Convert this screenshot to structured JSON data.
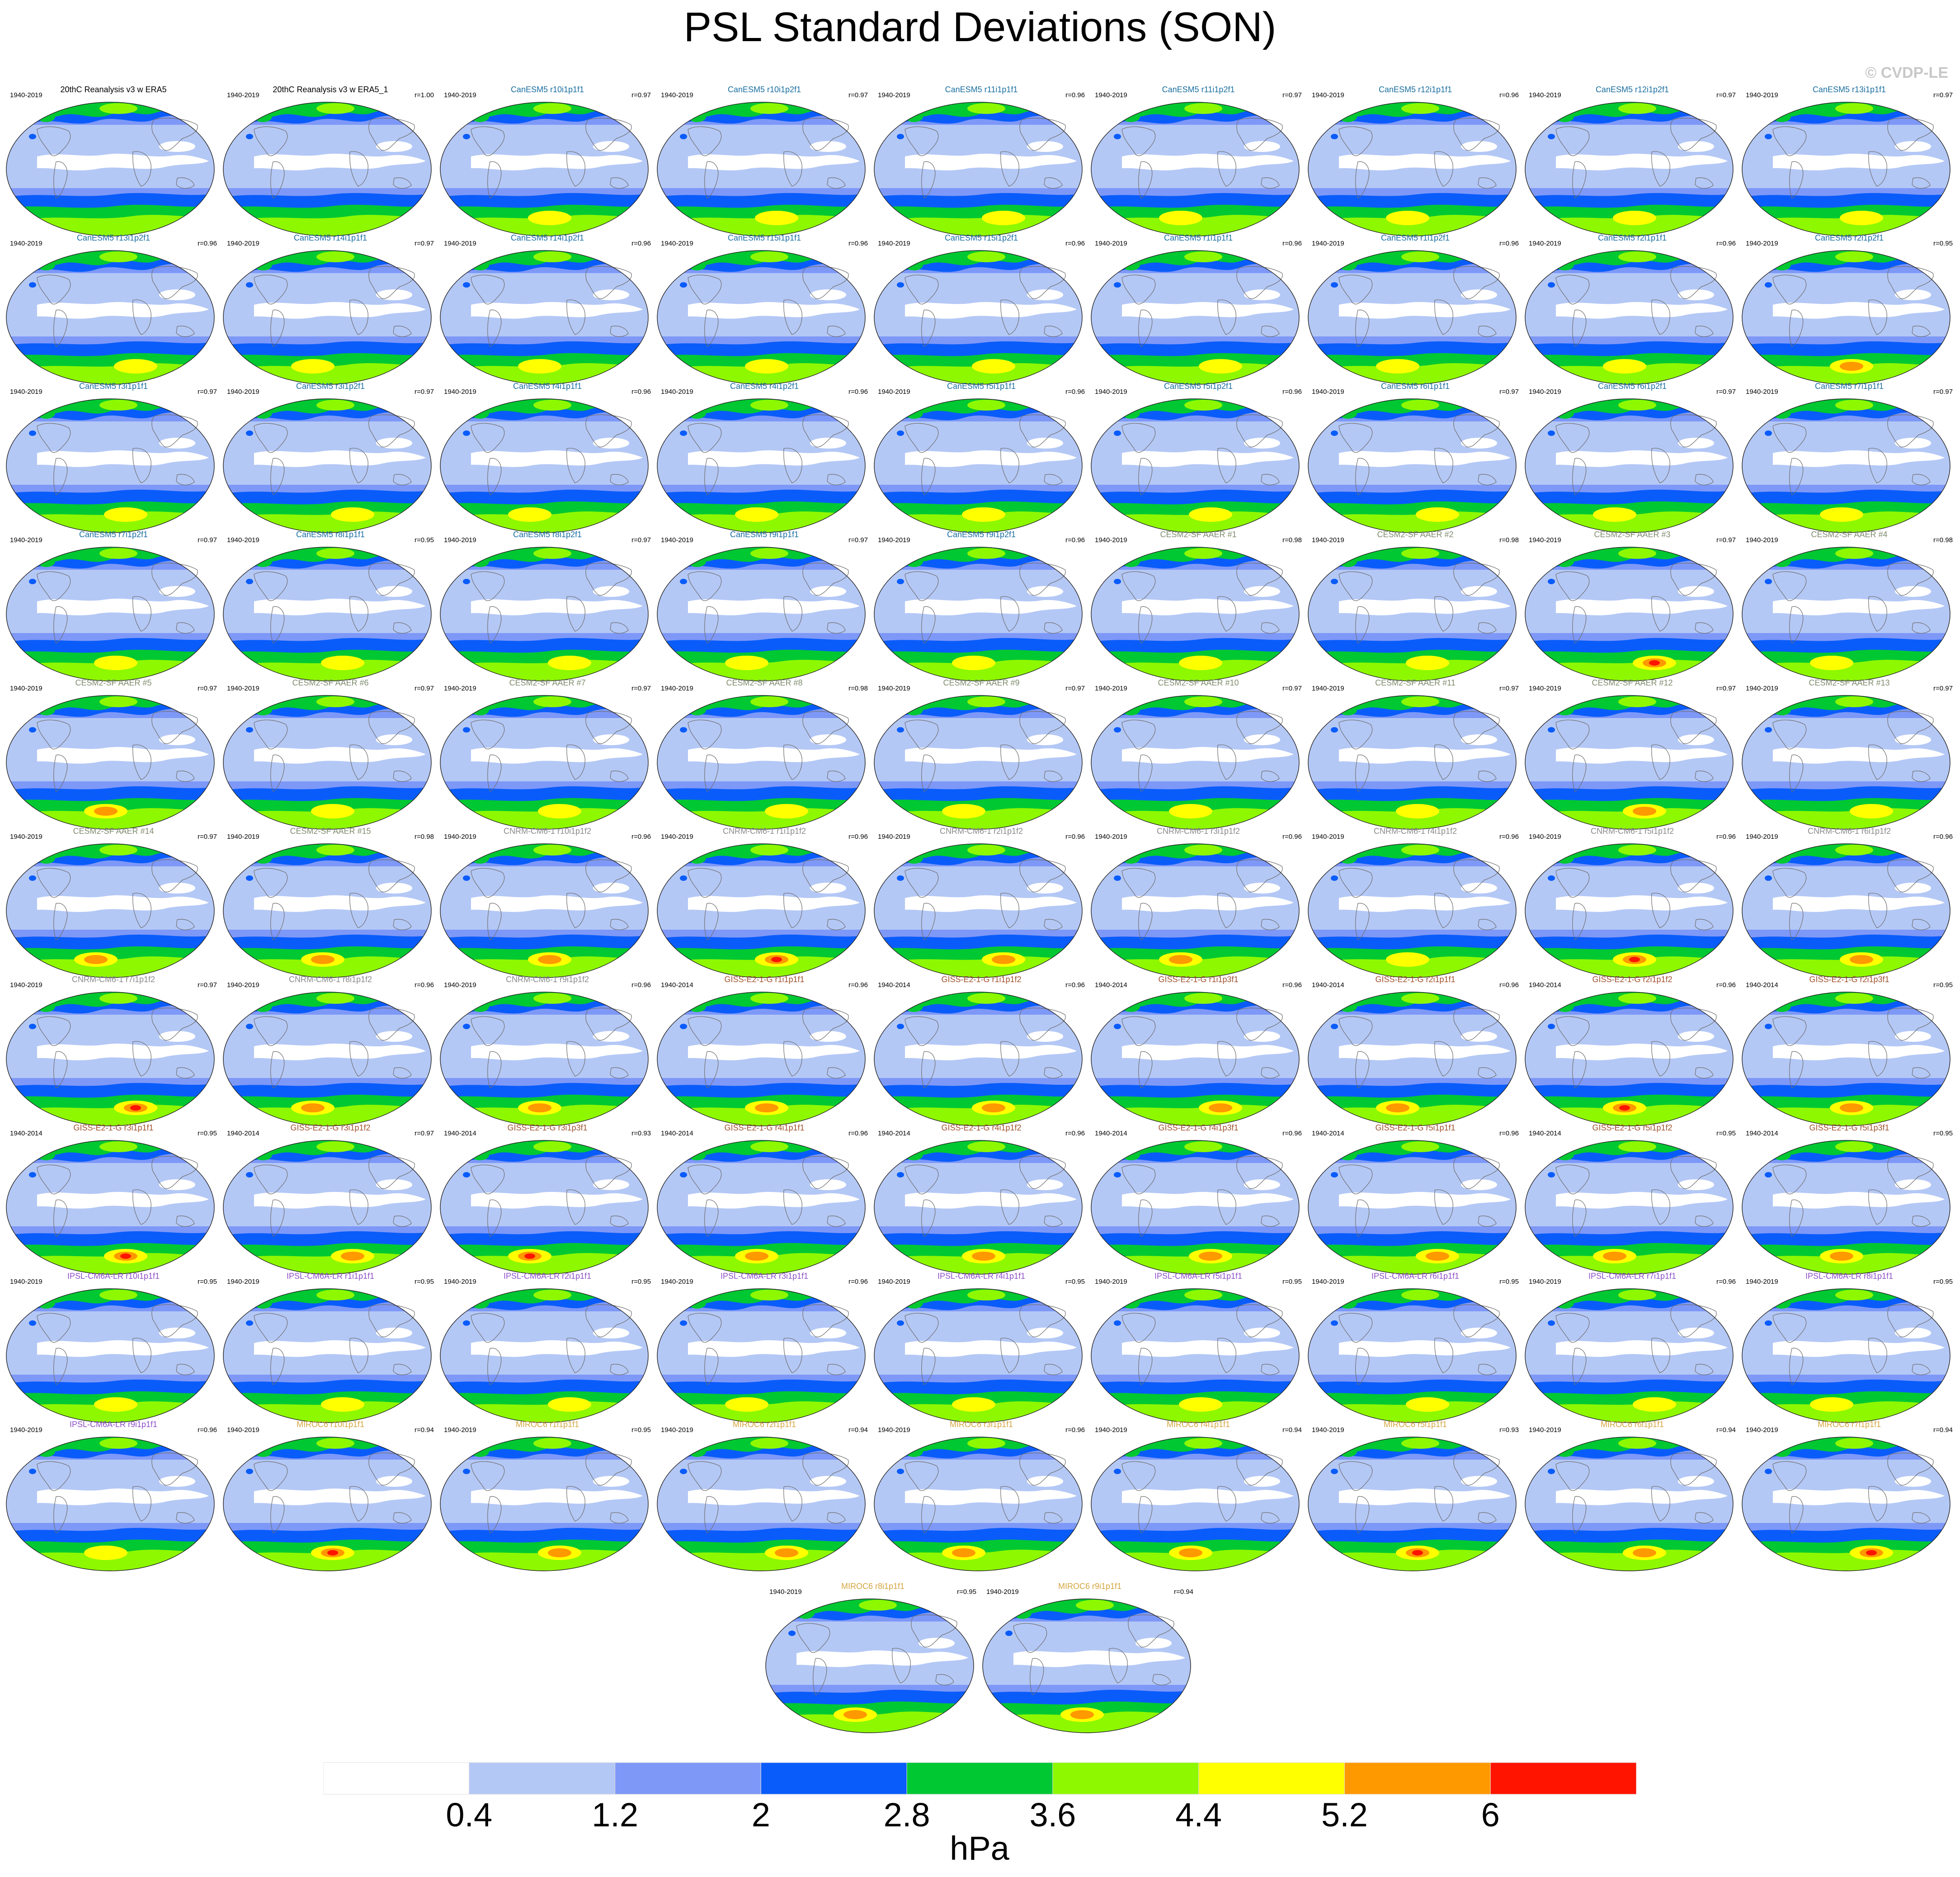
{
  "title": "PSL Standard Deviations (SON)",
  "credit": "© CVDP-LE",
  "chart_data": {
    "type": "heatmap",
    "description_units": "hPa",
    "colorbar": {
      "levels": [
        0.4,
        1.2,
        2,
        2.8,
        3.6,
        4.4,
        5.2,
        6
      ],
      "tick_labels": [
        "0.4",
        "1.2",
        "2",
        "2.8",
        "3.6",
        "4.4",
        "5.2",
        "6"
      ],
      "colors": [
        "#ffffff",
        "#b4c8f6",
        "#7e98f8",
        "#0a5cfa",
        "#00c832",
        "#8ef800",
        "#ffff00",
        "#ff9900",
        "#ff1400"
      ],
      "units": "hPa"
    },
    "panels": [
      {
        "name": "20thC Reanalysis v3 w ERA5",
        "years": "1940-2019",
        "r": "",
        "color": "#000000",
        "peak": 0
      },
      {
        "name": "20thC Reanalysis v3 w ERA5_1",
        "years": "1940-2019",
        "r": "r=1.00",
        "color": "#000000",
        "peak": 0
      },
      {
        "name": "CanESM5 r10i1p1f1",
        "years": "1940-2019",
        "r": "r=0.97",
        "color": "#1a6fa0",
        "peak": 1
      },
      {
        "name": "CanESM5 r10i1p2f1",
        "years": "1940-2019",
        "r": "r=0.97",
        "color": "#1a6fa0",
        "peak": 1
      },
      {
        "name": "CanESM5 r11i1p1f1",
        "years": "1940-2019",
        "r": "r=0.96",
        "color": "#1a6fa0",
        "peak": 1
      },
      {
        "name": "CanESM5 r11i1p2f1",
        "years": "1940-2019",
        "r": "r=0.97",
        "color": "#1a6fa0",
        "peak": 1
      },
      {
        "name": "CanESM5 r12i1p1f1",
        "years": "1940-2019",
        "r": "r=0.96",
        "color": "#1a6fa0",
        "peak": 1
      },
      {
        "name": "CanESM5 r12i1p2f1",
        "years": "1940-2019",
        "r": "r=0.97",
        "color": "#1a6fa0",
        "peak": 1
      },
      {
        "name": "CanESM5 r13i1p1f1",
        "years": "1940-2019",
        "r": "r=0.97",
        "color": "#1a6fa0",
        "peak": 1
      },
      {
        "name": "CanESM5 r13i1p2f1",
        "years": "1940-2019",
        "r": "r=0.96",
        "color": "#1a6fa0",
        "peak": 1
      },
      {
        "name": "CanESM5 r14i1p1f1",
        "years": "1940-2019",
        "r": "r=0.97",
        "color": "#1a6fa0",
        "peak": 1
      },
      {
        "name": "CanESM5 r14i1p2f1",
        "years": "1940-2019",
        "r": "r=0.96",
        "color": "#1a6fa0",
        "peak": 1
      },
      {
        "name": "CanESM5 r15i1p1f1",
        "years": "1940-2019",
        "r": "r=0.96",
        "color": "#1a6fa0",
        "peak": 1
      },
      {
        "name": "CanESM5 r15i1p2f1",
        "years": "1940-2019",
        "r": "r=0.96",
        "color": "#1a6fa0",
        "peak": 1
      },
      {
        "name": "CanESM5 r1i1p1f1",
        "years": "1940-2019",
        "r": "r=0.96",
        "color": "#1a6fa0",
        "peak": 1
      },
      {
        "name": "CanESM5 r1i1p2f1",
        "years": "1940-2019",
        "r": "r=0.96",
        "color": "#1a6fa0",
        "peak": 1
      },
      {
        "name": "CanESM5 r2i1p1f1",
        "years": "1940-2019",
        "r": "r=0.96",
        "color": "#1a6fa0",
        "peak": 1
      },
      {
        "name": "CanESM5 r2i1p2f1",
        "years": "1940-2019",
        "r": "r=0.95",
        "color": "#1a6fa0",
        "peak": 2
      },
      {
        "name": "CanESM5 r3i1p1f1",
        "years": "1940-2019",
        "r": "r=0.97",
        "color": "#1a6fa0",
        "peak": 1
      },
      {
        "name": "CanESM5 r3i1p2f1",
        "years": "1940-2019",
        "r": "r=0.97",
        "color": "#1a6fa0",
        "peak": 1
      },
      {
        "name": "CanESM5 r4i1p1f1",
        "years": "1940-2019",
        "r": "r=0.96",
        "color": "#1a6fa0",
        "peak": 1
      },
      {
        "name": "CanESM5 r4i1p2f1",
        "years": "1940-2019",
        "r": "r=0.96",
        "color": "#1a6fa0",
        "peak": 1
      },
      {
        "name": "CanESM5 r5i1p1f1",
        "years": "1940-2019",
        "r": "r=0.96",
        "color": "#1a6fa0",
        "peak": 1
      },
      {
        "name": "CanESM5 r5i1p2f1",
        "years": "1940-2019",
        "r": "r=0.96",
        "color": "#1a6fa0",
        "peak": 1
      },
      {
        "name": "CanESM5 r6i1p1f1",
        "years": "1940-2019",
        "r": "r=0.97",
        "color": "#1a6fa0",
        "peak": 1
      },
      {
        "name": "CanESM5 r6i1p2f1",
        "years": "1940-2019",
        "r": "r=0.97",
        "color": "#1a6fa0",
        "peak": 1
      },
      {
        "name": "CanESM5 r7i1p1f1",
        "years": "1940-2019",
        "r": "r=0.97",
        "color": "#1a6fa0",
        "peak": 1
      },
      {
        "name": "CanESM5 r7i1p2f1",
        "years": "1940-2019",
        "r": "r=0.97",
        "color": "#1a6fa0",
        "peak": 1
      },
      {
        "name": "CanESM5 r8i1p1f1",
        "years": "1940-2019",
        "r": "r=0.95",
        "color": "#1a6fa0",
        "peak": 1
      },
      {
        "name": "CanESM5 r8i1p2f1",
        "years": "1940-2019",
        "r": "r=0.97",
        "color": "#1a6fa0",
        "peak": 1
      },
      {
        "name": "CanESM5 r9i1p1f1",
        "years": "1940-2019",
        "r": "r=0.97",
        "color": "#1a6fa0",
        "peak": 1
      },
      {
        "name": "CanESM5 r9i1p2f1",
        "years": "1940-2019",
        "r": "r=0.96",
        "color": "#1a6fa0",
        "peak": 1
      },
      {
        "name": "CESM2-SF AAER #1",
        "years": "1940-2019",
        "r": "r=0.98",
        "color": "#7f8c6e",
        "peak": 1
      },
      {
        "name": "CESM2-SF AAER #2",
        "years": "1940-2019",
        "r": "r=0.98",
        "color": "#7f8c6e",
        "peak": 1
      },
      {
        "name": "CESM2-SF AAER #3",
        "years": "1940-2019",
        "r": "r=0.97",
        "color": "#7f8c6e",
        "peak": 3
      },
      {
        "name": "CESM2-SF AAER #4",
        "years": "1940-2019",
        "r": "r=0.98",
        "color": "#7f8c6e",
        "peak": 1
      },
      {
        "name": "CESM2-SF AAER #5",
        "years": "1940-2019",
        "r": "r=0.97",
        "color": "#7f8c6e",
        "peak": 2
      },
      {
        "name": "CESM2-SF AAER #6",
        "years": "1940-2019",
        "r": "r=0.97",
        "color": "#7f8c6e",
        "peak": 1
      },
      {
        "name": "CESM2-SF AAER #7",
        "years": "1940-2019",
        "r": "r=0.97",
        "color": "#7f8c6e",
        "peak": 1
      },
      {
        "name": "CESM2-SF AAER #8",
        "years": "1940-2019",
        "r": "r=0.98",
        "color": "#7f8c6e",
        "peak": 1
      },
      {
        "name": "CESM2-SF AAER #9",
        "years": "1940-2019",
        "r": "r=0.97",
        "color": "#7f8c6e",
        "peak": 1
      },
      {
        "name": "CESM2-SF AAER #10",
        "years": "1940-2019",
        "r": "r=0.97",
        "color": "#7f8c6e",
        "peak": 1
      },
      {
        "name": "CESM2-SF AAER #11",
        "years": "1940-2019",
        "r": "r=0.97",
        "color": "#7f8c6e",
        "peak": 1
      },
      {
        "name": "CESM2-SF AAER #12",
        "years": "1940-2019",
        "r": "r=0.97",
        "color": "#7f8c6e",
        "peak": 2
      },
      {
        "name": "CESM2-SF AAER #13",
        "years": "1940-2019",
        "r": "r=0.97",
        "color": "#7f8c6e",
        "peak": 1
      },
      {
        "name": "CESM2-SF AAER #14",
        "years": "1940-2019",
        "r": "r=0.97",
        "color": "#7f8c6e",
        "peak": 2
      },
      {
        "name": "CESM2-SF AAER #15",
        "years": "1940-2019",
        "r": "r=0.98",
        "color": "#7f8c6e",
        "peak": 2
      },
      {
        "name": "CNRM-CM6-1 r10i1p1f2",
        "years": "1940-2019",
        "r": "r=0.96",
        "color": "#8a8a8a",
        "peak": 2
      },
      {
        "name": "CNRM-CM6-1 r1i1p1f2",
        "years": "1940-2019",
        "r": "r=0.96",
        "color": "#8a8a8a",
        "peak": 3
      },
      {
        "name": "CNRM-CM6-1 r2i1p1f2",
        "years": "1940-2019",
        "r": "r=0.96",
        "color": "#8a8a8a",
        "peak": 2
      },
      {
        "name": "CNRM-CM6-1 r3i1p1f2",
        "years": "1940-2019",
        "r": "r=0.96",
        "color": "#8a8a8a",
        "peak": 2
      },
      {
        "name": "CNRM-CM6-1 r4i1p1f2",
        "years": "1940-2019",
        "r": "r=0.96",
        "color": "#8a8a8a",
        "peak": 1
      },
      {
        "name": "CNRM-CM6-1 r5i1p1f2",
        "years": "1940-2019",
        "r": "r=0.96",
        "color": "#8a8a8a",
        "peak": 3
      },
      {
        "name": "CNRM-CM6-1 r6i1p1f2",
        "years": "1940-2019",
        "r": "r=0.96",
        "color": "#8a8a8a",
        "peak": 2
      },
      {
        "name": "CNRM-CM6-1 r7i1p1f2",
        "years": "1940-2019",
        "r": "r=0.97",
        "color": "#8a8a8a",
        "peak": 3
      },
      {
        "name": "CNRM-CM6-1 r8i1p1f2",
        "years": "1940-2019",
        "r": "r=0.96",
        "color": "#8a8a8a",
        "peak": 2
      },
      {
        "name": "CNRM-CM6-1 r9i1p1f2",
        "years": "1940-2019",
        "r": "r=0.96",
        "color": "#8a8a8a",
        "peak": 2
      },
      {
        "name": "GISS-E2-1-G r1i1p1f1",
        "years": "1940-2014",
        "r": "r=0.96",
        "color": "#a0522d",
        "peak": 2
      },
      {
        "name": "GISS-E2-1-G r1i1p1f2",
        "years": "1940-2014",
        "r": "r=0.96",
        "color": "#a0522d",
        "peak": 2
      },
      {
        "name": "GISS-E2-1-G r1i1p3f1",
        "years": "1940-2014",
        "r": "r=0.96",
        "color": "#a0522d",
        "peak": 2
      },
      {
        "name": "GISS-E2-1-G r2i1p1f1",
        "years": "1940-2014",
        "r": "r=0.96",
        "color": "#a0522d",
        "peak": 2
      },
      {
        "name": "GISS-E2-1-G r2i1p1f2",
        "years": "1940-2014",
        "r": "r=0.96",
        "color": "#a0522d",
        "peak": 3
      },
      {
        "name": "GISS-E2-1-G r2i1p3f1",
        "years": "1940-2014",
        "r": "r=0.95",
        "color": "#a0522d",
        "peak": 2
      },
      {
        "name": "GISS-E2-1-G r3i1p1f1",
        "years": "1940-2014",
        "r": "r=0.95",
        "color": "#a0522d",
        "peak": 3
      },
      {
        "name": "GISS-E2-1-G r3i1p1f2",
        "years": "1940-2014",
        "r": "r=0.97",
        "color": "#a0522d",
        "peak": 2
      },
      {
        "name": "GISS-E2-1-G r3i1p3f1",
        "years": "1940-2014",
        "r": "r=0.93",
        "color": "#a0522d",
        "peak": 3
      },
      {
        "name": "GISS-E2-1-G r4i1p1f1",
        "years": "1940-2014",
        "r": "r=0.96",
        "color": "#a0522d",
        "peak": 2
      },
      {
        "name": "GISS-E2-1-G r4i1p1f2",
        "years": "1940-2014",
        "r": "r=0.96",
        "color": "#a0522d",
        "peak": 2
      },
      {
        "name": "GISS-E2-1-G r4i1p3f1",
        "years": "1940-2014",
        "r": "r=0.96",
        "color": "#a0522d",
        "peak": 2
      },
      {
        "name": "GISS-E2-1-G r5i1p1f1",
        "years": "1940-2014",
        "r": "r=0.96",
        "color": "#a0522d",
        "peak": 2
      },
      {
        "name": "GISS-E2-1-G r5i1p1f2",
        "years": "1940-2014",
        "r": "r=0.95",
        "color": "#a0522d",
        "peak": 2
      },
      {
        "name": "GISS-E2-1-G r5i1p3f1",
        "years": "1940-2014",
        "r": "r=0.95",
        "color": "#a0522d",
        "peak": 2
      },
      {
        "name": "IPSL-CM6A-LR r10i1p1f1",
        "years": "1940-2019",
        "r": "r=0.95",
        "color": "#8e4fc7",
        "peak": 1
      },
      {
        "name": "IPSL-CM6A-LR r1i1p1f1",
        "years": "1940-2019",
        "r": "r=0.95",
        "color": "#8e4fc7",
        "peak": 1
      },
      {
        "name": "IPSL-CM6A-LR r2i1p1f1",
        "years": "1940-2019",
        "r": "r=0.95",
        "color": "#8e4fc7",
        "peak": 1
      },
      {
        "name": "IPSL-CM6A-LR r3i1p1f1",
        "years": "1940-2019",
        "r": "r=0.96",
        "color": "#8e4fc7",
        "peak": 1
      },
      {
        "name": "IPSL-CM6A-LR r4i1p1f1",
        "years": "1940-2019",
        "r": "r=0.95",
        "color": "#8e4fc7",
        "peak": 1
      },
      {
        "name": "IPSL-CM6A-LR r5i1p1f1",
        "years": "1940-2019",
        "r": "r=0.95",
        "color": "#8e4fc7",
        "peak": 1
      },
      {
        "name": "IPSL-CM6A-LR r6i1p1f1",
        "years": "1940-2019",
        "r": "r=0.95",
        "color": "#8e4fc7",
        "peak": 1
      },
      {
        "name": "IPSL-CM6A-LR r7i1p1f1",
        "years": "1940-2019",
        "r": "r=0.96",
        "color": "#8e4fc7",
        "peak": 1
      },
      {
        "name": "IPSL-CM6A-LR r8i1p1f1",
        "years": "1940-2019",
        "r": "r=0.95",
        "color": "#8e4fc7",
        "peak": 1
      },
      {
        "name": "IPSL-CM6A-LR r9i1p1f1",
        "years": "1940-2019",
        "r": "r=0.96",
        "color": "#8e4fc7",
        "peak": 1
      },
      {
        "name": "MIROC6 r10i1p1f1",
        "years": "1940-2019",
        "r": "r=0.94",
        "color": "#d4a640",
        "peak": 3
      },
      {
        "name": "MIROC6 r1i1p1f1",
        "years": "1940-2019",
        "r": "r=0.95",
        "color": "#d4a640",
        "peak": 2
      },
      {
        "name": "MIROC6 r2i1p1f1",
        "years": "1940-2019",
        "r": "r=0.94",
        "color": "#d4a640",
        "peak": 2
      },
      {
        "name": "MIROC6 r3i1p1f1",
        "years": "1940-2019",
        "r": "r=0.96",
        "color": "#d4a640",
        "peak": 2
      },
      {
        "name": "MIROC6 r4i1p1f1",
        "years": "1940-2019",
        "r": "r=0.94",
        "color": "#d4a640",
        "peak": 2
      },
      {
        "name": "MIROC6 r5i1p1f1",
        "years": "1940-2019",
        "r": "r=0.93",
        "color": "#d4a640",
        "peak": 3
      },
      {
        "name": "MIROC6 r6i1p1f1",
        "years": "1940-2019",
        "r": "r=0.94",
        "color": "#d4a640",
        "peak": 2
      },
      {
        "name": "MIROC6 r7i1p1f1",
        "years": "1940-2019",
        "r": "r=0.94",
        "color": "#d4a640",
        "peak": 3
      },
      {
        "name": "MIROC6 r8i1p1f1",
        "years": "1940-2019",
        "r": "r=0.95",
        "color": "#d4a640",
        "peak": 2
      },
      {
        "name": "MIROC6 r9i1p1f1",
        "years": "1940-2019",
        "r": "r=0.94",
        "color": "#d4a640",
        "peak": 2
      }
    ]
  }
}
